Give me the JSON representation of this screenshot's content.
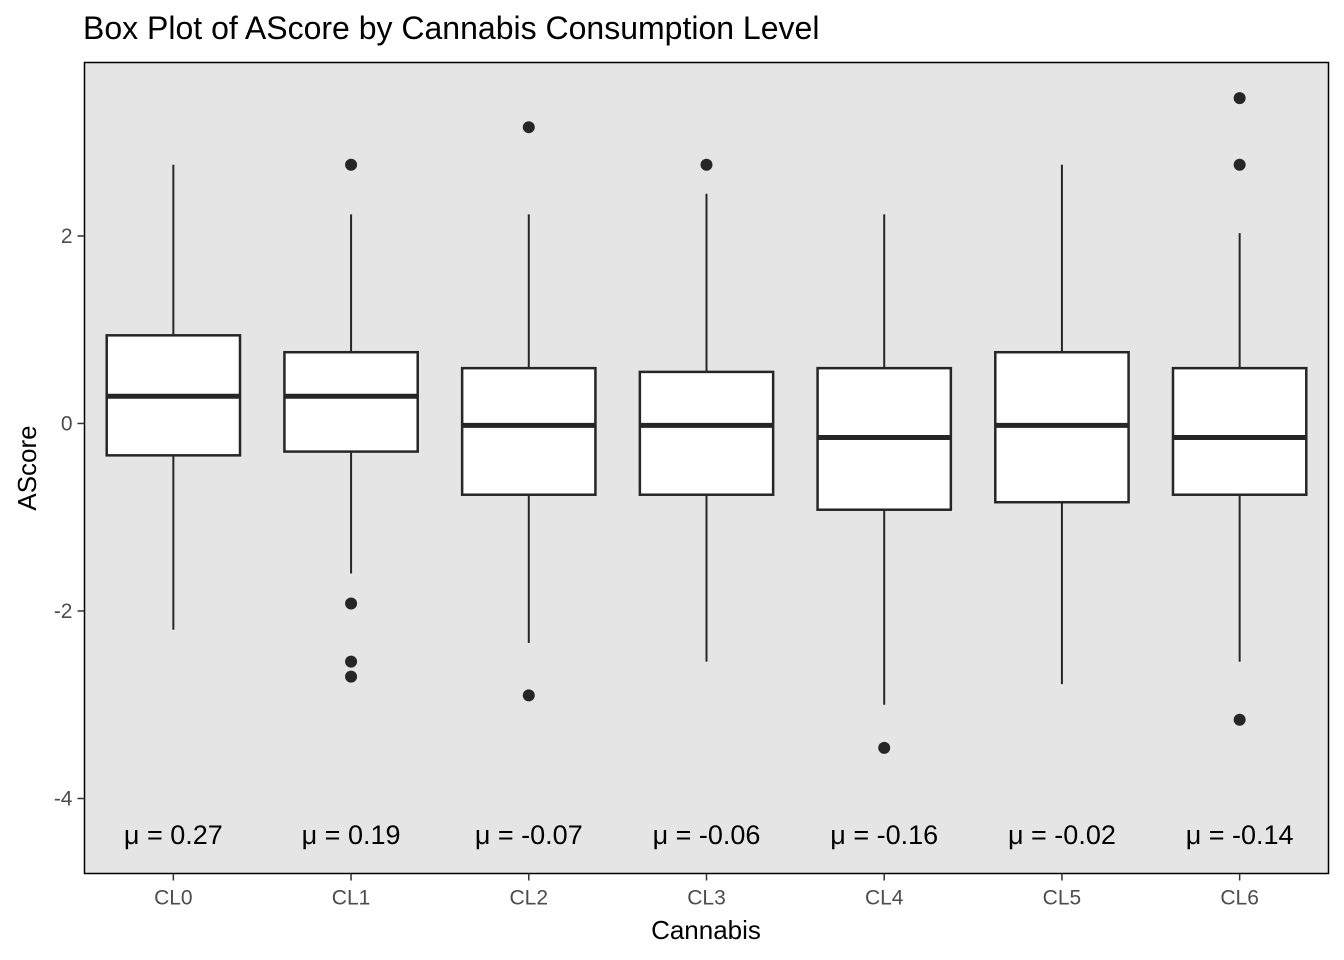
{
  "chart_data": {
    "type": "box",
    "title": "Box Plot of AScore by Cannabis Consumption Level",
    "xlabel": "Cannabis",
    "ylabel": "AScore",
    "ylim": [
      -4.8,
      3.85
    ],
    "yticks": [
      -4,
      -2,
      0,
      2
    ],
    "ytick_labels": [
      "-4",
      "-2",
      "0",
      "2"
    ],
    "categories": [
      "CL0",
      "CL1",
      "CL2",
      "CL3",
      "CL4",
      "CL5",
      "CL6"
    ],
    "boxes": [
      {
        "category": "CL0",
        "q1": -0.34,
        "median": 0.29,
        "q3": 0.94,
        "whisker_low": -2.2,
        "whisker_high": 2.76,
        "outliers": []
      },
      {
        "category": "CL1",
        "q1": -0.3,
        "median": 0.29,
        "q3": 0.76,
        "whisker_low": -1.6,
        "whisker_high": 2.23,
        "outliers": [
          2.76,
          -1.92,
          -2.54,
          -2.7
        ]
      },
      {
        "category": "CL2",
        "q1": -0.76,
        "median": -0.02,
        "q3": 0.59,
        "whisker_low": -2.34,
        "whisker_high": 2.23,
        "outliers": [
          3.16,
          -2.9
        ]
      },
      {
        "category": "CL3",
        "q1": -0.76,
        "median": -0.02,
        "q3": 0.55,
        "whisker_low": -2.54,
        "whisker_high": 2.45,
        "outliers": [
          2.76
        ]
      },
      {
        "category": "CL4",
        "q1": -0.92,
        "median": -0.15,
        "q3": 0.59,
        "whisker_low": -3.0,
        "whisker_high": 2.23,
        "outliers": [
          -3.46
        ]
      },
      {
        "category": "CL5",
        "q1": -0.84,
        "median": -0.02,
        "q3": 0.76,
        "whisker_low": -2.78,
        "whisker_high": 2.76,
        "outliers": []
      },
      {
        "category": "CL6",
        "q1": -0.76,
        "median": -0.15,
        "q3": 0.59,
        "whisker_low": -2.54,
        "whisker_high": 2.03,
        "outliers": [
          3.47,
          2.76,
          -3.16
        ]
      }
    ],
    "mean_labels": [
      "μ = 0.27",
      "μ = 0.19",
      "μ = -0.07",
      "μ = -0.06",
      "μ = -0.16",
      "μ = -0.02",
      "μ = -0.14"
    ],
    "mean_label_y": -4.38,
    "grid": false,
    "legend": "none",
    "colors": {
      "panel_background": "#e5e5e5",
      "box_fill": "#ffffff",
      "box_stroke": "#262626",
      "outlier": "#262626",
      "tick_text": "#4d4d4d"
    }
  }
}
